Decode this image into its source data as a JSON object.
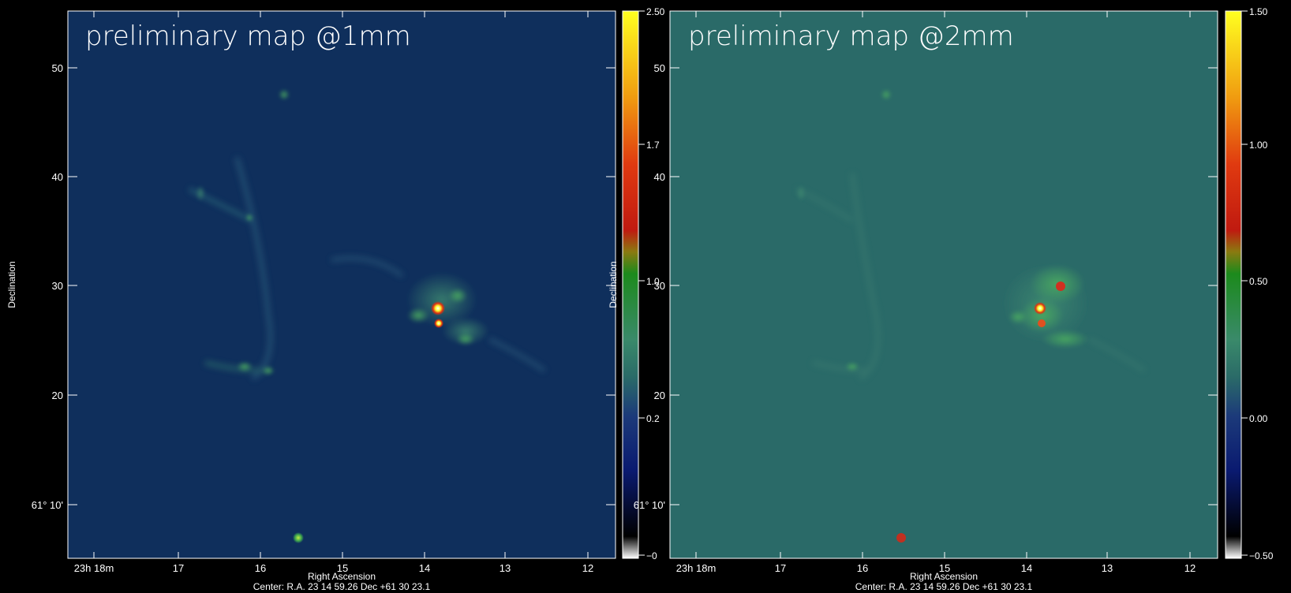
{
  "panels": [
    {
      "title": "preliminary map @1mm",
      "theme": "blue",
      "x_axis_label": "Right Ascension",
      "y_axis_label": "Declination",
      "center_label": "Center:   R.A. 23 14 59.26       Dec   +61 30 23.1",
      "ra_ticks": [
        {
          "label": "23h 18m",
          "major": true
        },
        {
          "label": "17"
        },
        {
          "label": "16"
        },
        {
          "label": "15"
        },
        {
          "label": "14"
        },
        {
          "label": "13"
        },
        {
          "label": "12"
        }
      ],
      "dec_ticks": [
        {
          "label": "61° 10'"
        },
        {
          "label": "20"
        },
        {
          "label": "30"
        },
        {
          "label": "40"
        },
        {
          "label": "50"
        }
      ],
      "colorbar": {
        "ticks": [
          "2.50",
          "1.7",
          "1.0",
          "0.2",
          "−0"
        ]
      }
    },
    {
      "title": "preliminary map @2mm",
      "theme": "teal",
      "x_axis_label": "Right Ascension",
      "y_axis_label": "Declination",
      "center_label": "Center:   R.A. 23 14 59.26       Dec   +61 30 23.1",
      "ra_ticks": [
        {
          "label": "23h 18m",
          "major": true
        },
        {
          "label": "17"
        },
        {
          "label": "16"
        },
        {
          "label": "15"
        },
        {
          "label": "14"
        },
        {
          "label": "13"
        },
        {
          "label": "12"
        }
      ],
      "dec_ticks": [
        {
          "label": "61° 10'"
        },
        {
          "label": "20"
        },
        {
          "label": "30"
        },
        {
          "label": "40"
        },
        {
          "label": "50"
        }
      ],
      "colorbar": {
        "ticks": [
          "1.50",
          "1.00",
          "0.50",
          "0.00",
          "−0.50"
        ]
      }
    }
  ],
  "colors": {
    "map_1mm_bg": "#0f2f5c",
    "map_2mm_bg": "#2a6a68",
    "axis": "#ffffff"
  }
}
